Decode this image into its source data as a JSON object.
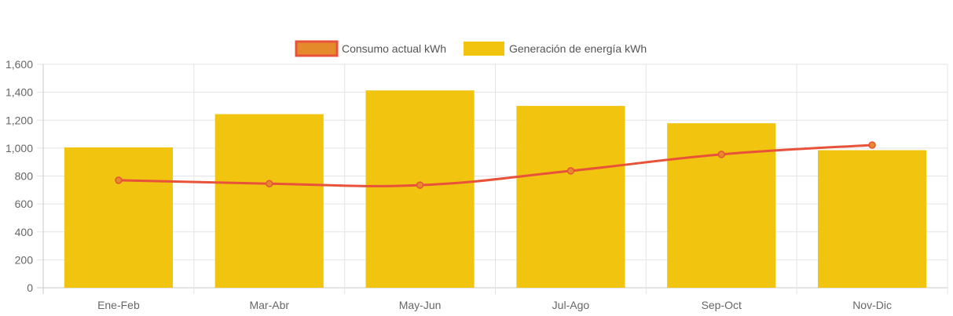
{
  "chart_data": {
    "type": "bar",
    "categories": [
      "Ene-Feb",
      "Mar-Abr",
      "May-Jun",
      "Jul-Ago",
      "Sep-Oct",
      "Nov-Dic"
    ],
    "series": [
      {
        "name": "Consumo actual kWh",
        "type": "line",
        "values": [
          770,
          745,
          735,
          837,
          955,
          1022
        ],
        "color": "#e8523a",
        "fill": "#e58a2a"
      },
      {
        "name": "Generación de energía kWh",
        "type": "bar",
        "values": [
          1005,
          1243,
          1413,
          1302,
          1178,
          985
        ],
        "color": "#f0c40f"
      }
    ],
    "y_ticks": [
      "0",
      "200",
      "400",
      "600",
      "800",
      "1,000",
      "1,200",
      "1,400",
      "1,600"
    ],
    "ylim": [
      0,
      1600
    ],
    "grid": true,
    "legend_position": "top-center"
  }
}
